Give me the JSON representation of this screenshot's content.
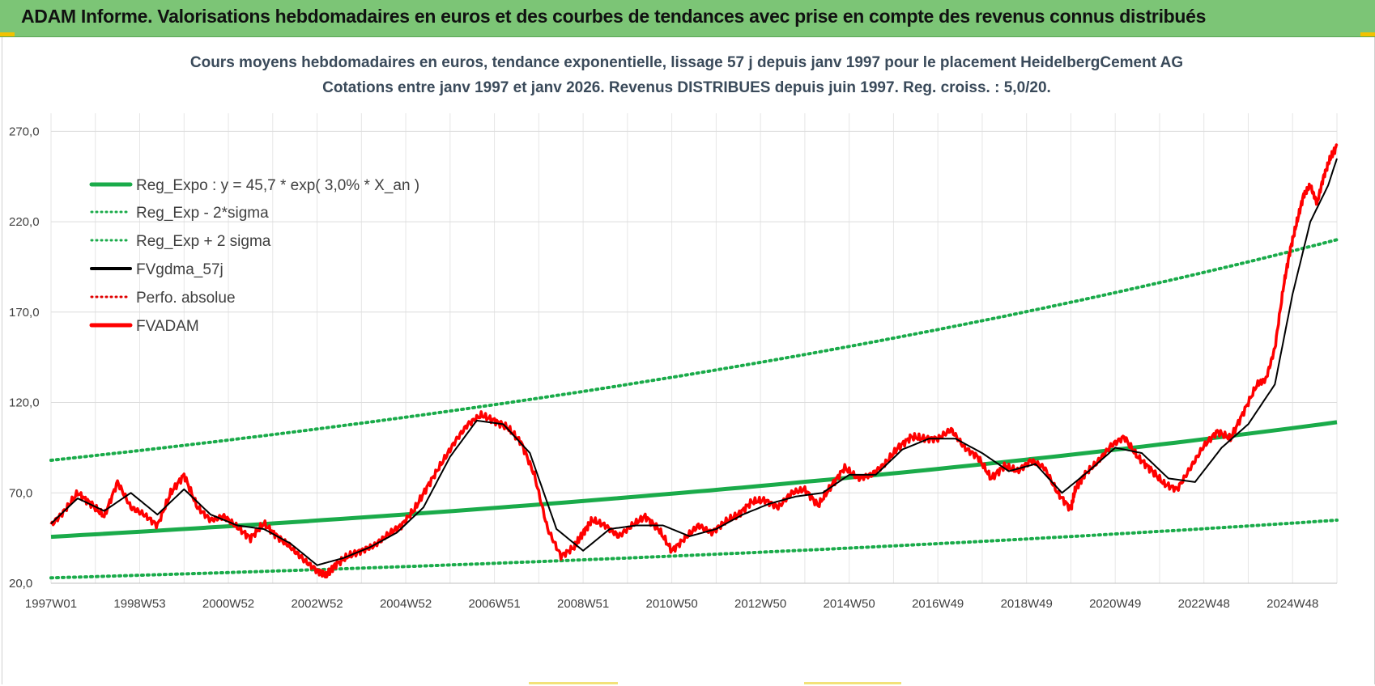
{
  "header": {
    "title": "ADAM Informe. Valorisations hebdomadaires en euros et des courbes de tendances avec prise en compte des revenus connus distribués"
  },
  "chart_data": {
    "type": "line",
    "title": "Cours moyens hebdomadaires en euros, tendance exponentielle, lissage 57 j depuis janv 1997  pour le placement HeidelbergCement AG",
    "subtitle": "Cotations entre janv 1997 et janv 2026. Revenus DISTRIBUES depuis juin 1997. Reg. croiss. : 5,0/20.",
    "xlabel": "",
    "ylabel": "",
    "xlim": [
      1997.0,
      2026.0
    ],
    "ylim": [
      20,
      280
    ],
    "y_ticks": [
      20,
      70,
      120,
      170,
      220,
      270
    ],
    "y_tick_labels": [
      "20,0",
      "70,0",
      "120,0",
      "170,0",
      "220,0",
      "270,0"
    ],
    "x_ticks": [
      1997.0,
      1999.0,
      2001.0,
      2003.0,
      2005.0,
      2007.0,
      2009.0,
      2011.0,
      2013.0,
      2015.0,
      2017.0,
      2019.0,
      2021.0,
      2023.0,
      2025.0
    ],
    "x_tick_labels": [
      "1997W01",
      "1998W53",
      "2000W52",
      "2002W52",
      "2004W52",
      "2006W51",
      "2008W51",
      "2010W50",
      "2012W50",
      "2014W50",
      "2016W49",
      "2018W49",
      "2020W49",
      "2022W48",
      "2024W48"
    ],
    "grid": true,
    "legend_position": "top-left",
    "legend": [
      {
        "key": "reg",
        "label": "Reg_Expo : y = 45,7 * exp( 3,0% *  X_an )",
        "color": "#1aab4a",
        "style": "solid-thick"
      },
      {
        "key": "low",
        "label": "Reg_Exp - 2*sigma",
        "color": "#1aab4a",
        "style": "dotted"
      },
      {
        "key": "high",
        "label": "Reg_Exp + 2 sigma",
        "color": "#1aab4a",
        "style": "dotted"
      },
      {
        "key": "gdma",
        "label": "FVgdma_57j",
        "color": "#000000",
        "style": "solid"
      },
      {
        "key": "perf",
        "label": "Perfo. absolue",
        "color": "#e00000",
        "style": "dotted"
      },
      {
        "key": "adam",
        "label": "FVADAM",
        "color": "#ff0000",
        "style": "solid-thick"
      }
    ],
    "series": [
      {
        "name": "Reg_Expo",
        "x": [
          1997.0,
          2026.0
        ],
        "model": "exponential",
        "a": 45.7,
        "rate": 0.03,
        "values": [
          45.7,
          109.0
        ]
      },
      {
        "name": "Reg_Exp - 2*sigma",
        "x": [
          1997.0,
          2026.0
        ],
        "model": "exponential",
        "a": 23.0,
        "rate": 0.03,
        "values": [
          23.0,
          55.0
        ]
      },
      {
        "name": "Reg_Exp + 2 sigma",
        "x": [
          1997.0,
          2026.0
        ],
        "model": "exponential",
        "a": 88.0,
        "rate": 0.03,
        "values": [
          88.0,
          210.0
        ]
      },
      {
        "name": "FVADAM",
        "x": [
          1997.0,
          1997.3,
          1997.6,
          1997.9,
          1998.2,
          1998.5,
          1998.8,
          1999.1,
          1999.4,
          1999.7,
          2000.0,
          2000.3,
          2000.6,
          2000.9,
          2001.2,
          2001.5,
          2001.8,
          2002.1,
          2002.4,
          2002.7,
          2003.0,
          2003.2,
          2003.4,
          2003.7,
          2004.0,
          2004.3,
          2004.6,
          2004.9,
          2005.2,
          2005.5,
          2005.8,
          2006.1,
          2006.4,
          2006.7,
          2007.0,
          2007.3,
          2007.6,
          2007.9,
          2008.2,
          2008.5,
          2008.8,
          2009.0,
          2009.2,
          2009.5,
          2009.8,
          2010.1,
          2010.4,
          2010.7,
          2011.0,
          2011.3,
          2011.6,
          2011.9,
          2012.2,
          2012.5,
          2012.8,
          2013.1,
          2013.4,
          2013.7,
          2014.0,
          2014.3,
          2014.6,
          2014.9,
          2015.2,
          2015.5,
          2015.8,
          2016.1,
          2016.4,
          2016.7,
          2017.0,
          2017.3,
          2017.6,
          2017.9,
          2018.2,
          2018.5,
          2018.8,
          2019.1,
          2019.4,
          2019.7,
          2020.0,
          2020.1,
          2020.3,
          2020.6,
          2020.9,
          2021.2,
          2021.5,
          2021.8,
          2022.1,
          2022.4,
          2022.7,
          2023.0,
          2023.3,
          2023.6,
          2023.9,
          2024.2,
          2024.4,
          2024.6,
          2024.8,
          2024.95,
          2025.1,
          2025.25,
          2025.4,
          2025.55,
          2025.7,
          2025.85,
          2026.0
        ],
        "values": [
          52,
          60,
          70,
          64,
          57,
          76,
          62,
          58,
          52,
          70,
          80,
          62,
          55,
          57,
          51,
          45,
          53,
          46,
          40,
          33,
          27,
          24,
          30,
          35,
          38,
          41,
          47,
          52,
          61,
          74,
          86,
          98,
          108,
          113,
          110,
          106,
          98,
          80,
          50,
          35,
          40,
          48,
          55,
          52,
          46,
          52,
          57,
          50,
          38,
          45,
          52,
          48,
          54,
          58,
          65,
          66,
          62,
          70,
          72,
          63,
          74,
          84,
          78,
          80,
          86,
          95,
          101,
          100,
          100,
          105,
          95,
          90,
          78,
          85,
          82,
          88,
          84,
          70,
          61,
          72,
          80,
          87,
          96,
          101,
          90,
          83,
          75,
          72,
          84,
          96,
          104,
          100,
          115,
          130,
          133,
          150,
          185,
          205,
          220,
          235,
          240,
          230,
          245,
          255,
          262
        ]
      },
      {
        "name": "FVgdma_57j",
        "x": [
          1997.0,
          1997.6,
          1998.2,
          1998.8,
          1999.4,
          2000.0,
          2000.6,
          2001.2,
          2001.8,
          2002.4,
          2003.0,
          2003.6,
          2004.2,
          2004.8,
          2005.4,
          2006.0,
          2006.6,
          2007.2,
          2007.8,
          2008.4,
          2009.0,
          2009.6,
          2010.2,
          2010.8,
          2011.4,
          2012.0,
          2012.6,
          2013.2,
          2013.8,
          2014.4,
          2015.0,
          2015.6,
          2016.2,
          2016.8,
          2017.4,
          2018.0,
          2018.6,
          2019.2,
          2019.8,
          2020.4,
          2021.0,
          2021.6,
          2022.2,
          2022.8,
          2023.4,
          2024.0,
          2024.6,
          2025.0,
          2025.4,
          2025.8,
          2026.0
        ],
        "values": [
          53,
          67,
          60,
          70,
          58,
          72,
          58,
          52,
          50,
          42,
          30,
          34,
          40,
          48,
          62,
          90,
          110,
          108,
          92,
          50,
          38,
          50,
          52,
          52,
          46,
          50,
          58,
          64,
          68,
          70,
          80,
          80,
          94,
          100,
          100,
          92,
          82,
          86,
          70,
          82,
          95,
          92,
          78,
          76,
          95,
          108,
          130,
          180,
          220,
          240,
          255
        ]
      }
    ]
  }
}
